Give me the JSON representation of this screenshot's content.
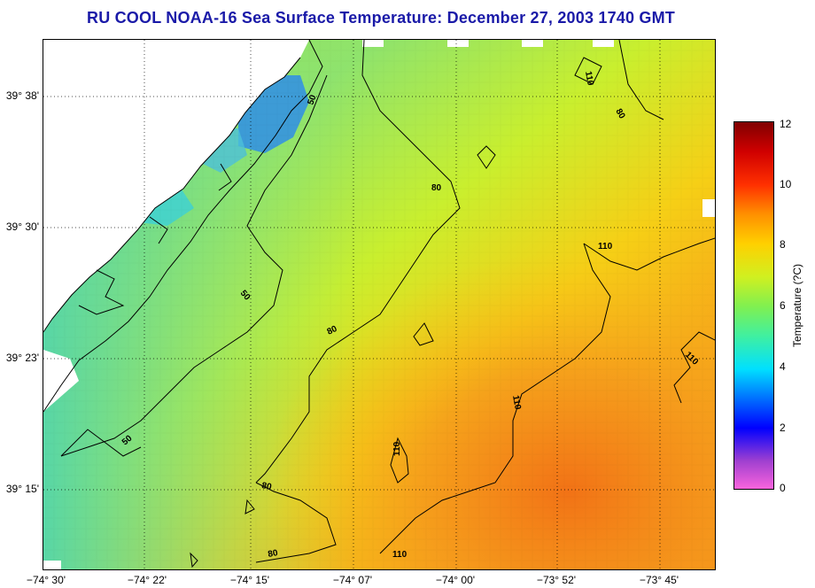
{
  "title": "RU COOL  NOAA-16  Sea Surface Temperature:  December 27, 2003 1740 GMT",
  "colorbar": {
    "label": "Temperature (?C)",
    "ticks": [
      "12",
      "10",
      "8",
      "6",
      "4",
      "2",
      "0"
    ]
  },
  "axes": {
    "latitude_ticks": [
      "39° 38'",
      "39° 30'",
      "39° 23'",
      "39° 15'"
    ],
    "longitude_ticks": [
      "−74° 30'",
      "−74° 22'",
      "−74° 15'",
      "−74° 07'",
      "−74° 00'",
      "−73° 52'",
      "−73° 45'"
    ]
  },
  "contour_labels": [
    "50",
    "50",
    "50",
    "80",
    "80",
    "80",
    "80",
    "110",
    "110",
    "110",
    "110",
    "110",
    "110",
    "80"
  ],
  "colors": {
    "title": "#1a1aa8",
    "land": "#ffffff",
    "coast": "#000000"
  }
}
